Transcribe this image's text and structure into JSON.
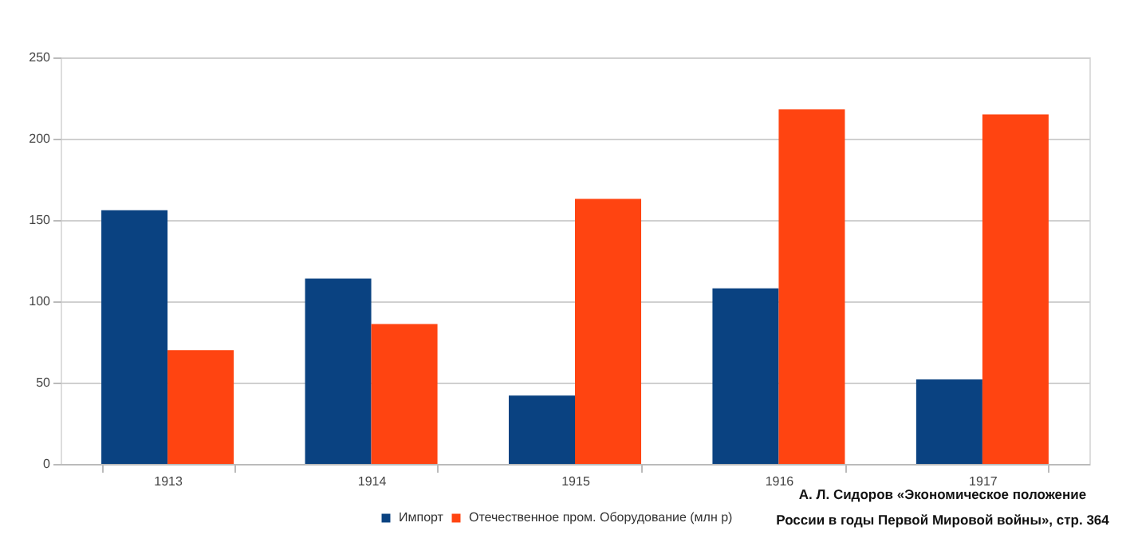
{
  "chart_data": {
    "type": "bar",
    "categories": [
      "1913",
      "1914",
      "1915",
      "1916",
      "1917"
    ],
    "series": [
      {
        "name": "Импорт",
        "color": "#0a4281",
        "values": [
          156,
          114,
          42,
          108,
          52
        ]
      },
      {
        "name": "Отечественное пром. Оборудование (млн р)",
        "color": "#ff4411",
        "values": [
          70,
          86,
          163,
          218,
          215
        ]
      }
    ],
    "ylim": [
      0,
      250
    ],
    "yticks": [
      0,
      50,
      100,
      150,
      200,
      250
    ],
    "grid": "y",
    "legend": "bottom",
    "annotations": [
      "А. Л. Сидоров  «Экономическое положение",
      "России в годы Первой Мировой войны», стр. 364"
    ]
  }
}
